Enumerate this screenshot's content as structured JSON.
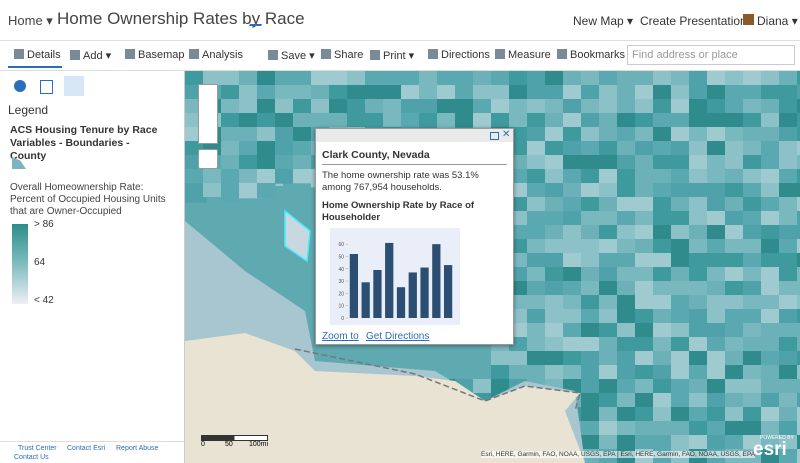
{
  "topbar": {
    "home": "Home ▾",
    "title": "Home Ownership Rates by Race",
    "new_map": "New Map ▾",
    "create_presentation": "Create Presentation",
    "user": "Diana ▾"
  },
  "toolbar": {
    "items": [
      "Details",
      "Add ▾",
      "Basemap",
      "Analysis",
      "Save ▾",
      "Share",
      "Print ▾",
      "Directions",
      "Measure",
      "Bookmarks"
    ],
    "search_placeholder": "Find address or place"
  },
  "legend": {
    "heading": "Legend",
    "layer": "ACS Housing Tenure by Race Variables - Boundaries - County",
    "field": "Overall Homeownership Rate: Percent of Occupied Housing Units that are Owner-Occupied",
    "labels": [
      "> 86",
      "64",
      "< 42"
    ]
  },
  "footer": {
    "links": [
      "Trust Center",
      "Contact Esri",
      "Report Abuse",
      "Contact Us"
    ]
  },
  "popup": {
    "title": "Clark County, Nevada",
    "text": "The home ownership rate was 53.1% among 767,954 households.",
    "chart_title": "Home Ownership Rate by Race of Householder",
    "chart": {
      "type": "bar",
      "values": [
        52,
        29,
        39,
        61,
        25,
        37,
        41,
        60,
        43
      ],
      "color": "#2b4e72",
      "ylim": [
        0,
        65
      ],
      "yticks": [
        0,
        10,
        20,
        30,
        40,
        50,
        60
      ]
    },
    "links": [
      "Zoom to",
      "Get Directions"
    ]
  },
  "map": {
    "scale": [
      "0",
      "50",
      "100mi"
    ],
    "attribution": "Esri, HERE, Garmin, FAO, NOAA, USGS, EPA | Esri, HERE, Garmin, FAO, NOAA, USGS, EPA",
    "powered": "POWERED BY",
    "logo": "esri"
  }
}
